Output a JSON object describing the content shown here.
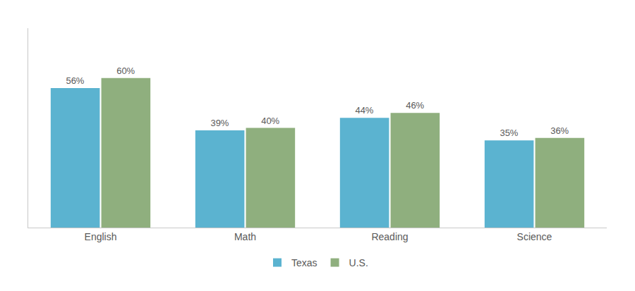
{
  "chart_data": {
    "type": "bar",
    "categories": [
      "English",
      "Math",
      "Reading",
      "Science"
    ],
    "series": [
      {
        "name": "Texas",
        "color": "#5BB3D0",
        "values": [
          56,
          39,
          44,
          35
        ],
        "value_labels": [
          "56%",
          "39%",
          "44%",
          "35%"
        ]
      },
      {
        "name": "U.S.",
        "color": "#8FAF7E",
        "values": [
          60,
          40,
          46,
          36
        ],
        "value_labels": [
          "60%",
          "40%",
          "46%",
          "36%"
        ]
      }
    ],
    "ylim": [
      0,
      80
    ],
    "yticks": [],
    "grid": false,
    "legend": "bottom",
    "data_labels": true,
    "tick_labels": "x"
  }
}
